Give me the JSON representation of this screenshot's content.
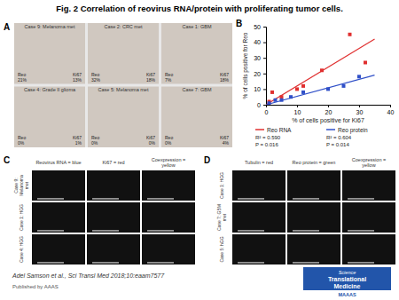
{
  "chart_data": {
    "type": "scatter",
    "title": "Fig. 2 Correlation of reovirus RNA/protein with proliferating tumor cells.",
    "x_label": "% of cells positive for Ki67",
    "y_label": "% of cells positive for Reo",
    "xlim": [
      0,
      40
    ],
    "ylim": [
      0,
      50
    ],
    "xticks": [
      0,
      10,
      20,
      30,
      40
    ],
    "yticks": [
      0,
      10,
      20,
      30,
      40,
      50
    ],
    "grid": false,
    "legend": "bottom",
    "series": [
      {
        "name": "Reo RNA",
        "color": "#e03030",
        "marker": "square",
        "x": [
          1,
          2,
          5,
          10,
          12,
          18,
          27,
          32
        ],
        "values": [
          2,
          8,
          5,
          10,
          12,
          22,
          45,
          27
        ],
        "fit_x": [
          0,
          35
        ],
        "fit_values": [
          0,
          42
        ],
        "stats": [
          "R² = 0.590",
          "P = 0.016"
        ]
      },
      {
        "name": "Reo protein",
        "color": "#3050c8",
        "marker": "square",
        "x": [
          1,
          3,
          5,
          8,
          12,
          20,
          25,
          30
        ],
        "values": [
          1,
          3,
          3,
          5,
          8,
          10,
          12,
          18
        ],
        "fit_x": [
          0,
          35
        ],
        "fit_values": [
          0,
          19
        ],
        "stats": [
          "R² = 0.604",
          "P = 0.014"
        ]
      }
    ],
    "panel_labels": [
      "A",
      "B",
      "C",
      "D"
    ],
    "panel_A": {
      "color": "#e8e8e8",
      "cell_color": "#d0c8c0",
      "cells": [
        {
          "title": "Case 9: Melanoma met",
          "labels": [
            "Reo\n21%",
            "Ki67\n13%"
          ]
        },
        {
          "title": "Case 2: CRC met",
          "labels": [
            "Reo\n32%",
            "Ki67\n18%"
          ]
        },
        {
          "title": "Case 1: GBM",
          "labels": [
            "Reo\n7%",
            "Ki67\n18%"
          ]
        },
        {
          "title": "Case 4: Grade II glioma",
          "labels": [
            "Reo\n0%",
            "Ki67\n1%"
          ]
        },
        {
          "title": "Case 5: Melanoma met",
          "labels": [
            "Reo\n0%",
            "Ki67\n0%"
          ]
        },
        {
          "title": "Case 7: GBM",
          "labels": [
            "Reo\n0%",
            "Ki67\n4%"
          ]
        }
      ]
    },
    "panel_C": {
      "color": "#111111",
      "columns": [
        "Reovirus RNA = blue",
        "Ki67 = red",
        "Coexpression =\nyellow"
      ],
      "rows": [
        "Case 9:\nMelanoma\nmet",
        "Case 1: HGG",
        "Case 4: HGG"
      ]
    },
    "panel_D": {
      "color": "#111111",
      "columns": [
        "Tubulin = red",
        "Reo protein = green",
        "Coexpression =\nyellow"
      ],
      "rows": [
        "Case 1: HGG",
        "Case 7: GBM\nmet",
        "Case 5: hGG"
      ]
    },
    "citation": "Adel Samson et al., Sci Transl Med 2018;10:eaam7577",
    "published": "Published by AAAS",
    "logo": {
      "color": "#2255aa",
      "lines": [
        "Science",
        "Translational",
        "Medicine"
      ],
      "bar": "MAAAS"
    }
  }
}
